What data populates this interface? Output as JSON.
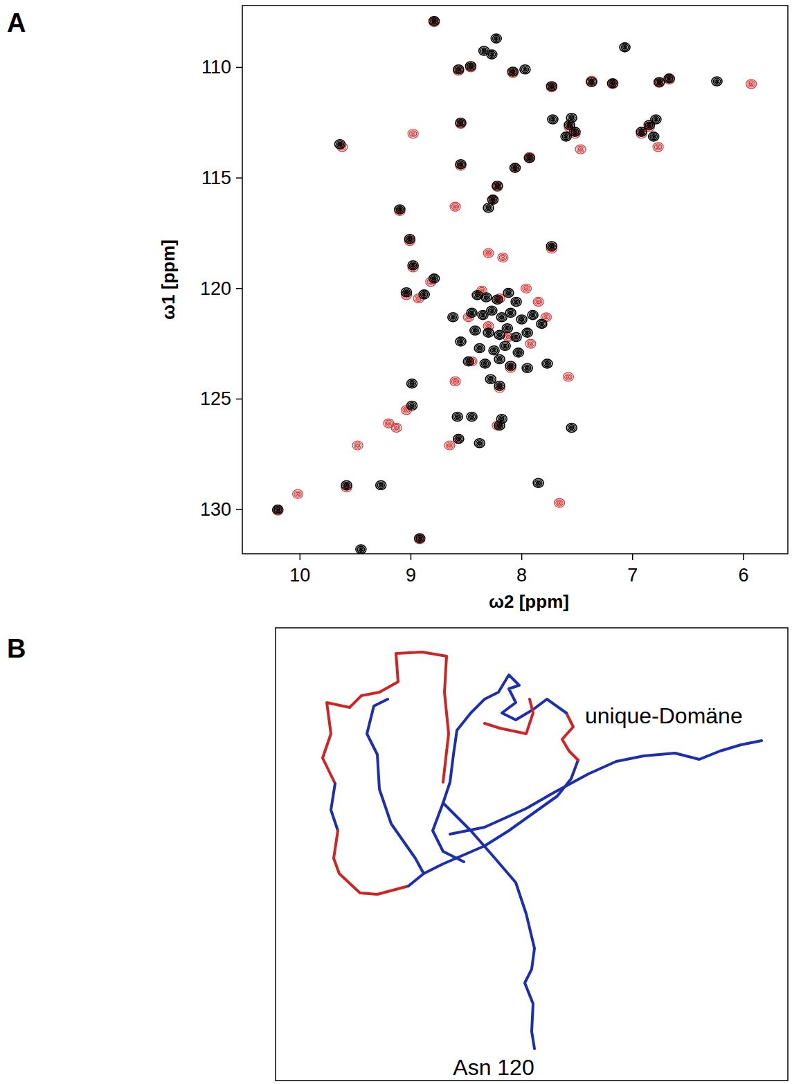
{
  "chart_data": {
    "type": "scatter",
    "panel_label": "A",
    "x_label": "ω2 [ppm]",
    "y_label": "ω1 [ppm]",
    "xlim": [
      10.52,
      5.6
    ],
    "ylim": [
      107.2,
      132
    ],
    "xticks": [
      10,
      9,
      8,
      7,
      6
    ],
    "yticks": [
      110,
      115,
      120,
      125,
      130
    ],
    "marker": "contour",
    "series": [
      {
        "color": "#e03030",
        "x": [
          8.79,
          8.57,
          8.46,
          8.08,
          7.73,
          7.37,
          7.18,
          6.76,
          6.67,
          5.93,
          7.57,
          7.52,
          6.85,
          6.92,
          7.47,
          6.77,
          8.55,
          9.62,
          8.98,
          7.93,
          8.06,
          8.55,
          8.22,
          8.26,
          9.1,
          8.6,
          9.01,
          7.73,
          8.3,
          8.17,
          8.98,
          8.82,
          9.04,
          8.93,
          8.36,
          8.2,
          7.96,
          7.85,
          7.78,
          8.48,
          8.3,
          8.12,
          7.92,
          8.45,
          8.1,
          8.6,
          8.2,
          7.58,
          9.2,
          9.13,
          9.48,
          9.04,
          8.65,
          8.57,
          8.22,
          9.58,
          10.02,
          10.2,
          7.66,
          8.92
        ],
        "values": [
          107.95,
          110.15,
          110.0,
          110.25,
          110.9,
          110.6,
          110.75,
          110.7,
          110.55,
          110.75,
          112.7,
          113.0,
          112.7,
          113.0,
          113.7,
          113.6,
          112.55,
          113.6,
          113.0,
          114.05,
          114.55,
          114.45,
          115.4,
          116.0,
          116.5,
          116.3,
          117.85,
          118.2,
          118.4,
          118.6,
          119.05,
          119.7,
          120.3,
          120.45,
          120.1,
          120.45,
          120.0,
          120.6,
          121.3,
          121.3,
          121.7,
          122.2,
          122.5,
          123.3,
          123.6,
          124.2,
          124.5,
          124.0,
          126.1,
          126.3,
          127.1,
          125.5,
          127.1,
          126.8,
          126.2,
          129.0,
          129.3,
          130.05,
          129.7,
          131.35
        ]
      },
      {
        "color": "#000000",
        "x": [
          8.79,
          8.23,
          8.57,
          8.46,
          8.34,
          8.27,
          8.08,
          7.73,
          7.37,
          7.18,
          6.76,
          6.67,
          6.24,
          7.07,
          7.97,
          7.57,
          7.52,
          7.55,
          7.6,
          6.85,
          6.79,
          6.92,
          6.81,
          8.55,
          7.72,
          9.64,
          8.55,
          8.06,
          7.93,
          8.22,
          8.26,
          8.3,
          9.1,
          9.01,
          7.73,
          8.98,
          8.79,
          9.04,
          8.88,
          8.4,
          8.32,
          8.22,
          8.12,
          8.05,
          8.45,
          8.35,
          8.27,
          8.18,
          8.1,
          8.0,
          7.9,
          7.82,
          8.42,
          8.3,
          8.2,
          8.13,
          8.05,
          7.95,
          8.55,
          8.38,
          8.25,
          8.15,
          8.03,
          8.48,
          8.33,
          8.2,
          8.1,
          7.95,
          8.62,
          8.28,
          8.2,
          7.77,
          8.99,
          8.99,
          8.58,
          8.45,
          8.57,
          8.38,
          8.2,
          8.18,
          7.55,
          9.27,
          9.58,
          10.2,
          7.85,
          8.92,
          9.45
        ],
        "values": [
          107.9,
          108.69,
          110.09,
          109.94,
          109.25,
          109.41,
          110.19,
          110.85,
          110.66,
          110.72,
          110.66,
          110.5,
          110.63,
          109.09,
          110.09,
          112.6,
          112.91,
          112.28,
          113.13,
          112.6,
          112.35,
          112.91,
          113.13,
          112.5,
          112.35,
          113.47,
          114.38,
          114.54,
          114.1,
          115.35,
          115.98,
          116.35,
          116.42,
          117.76,
          118.08,
          118.95,
          119.55,
          120.17,
          120.27,
          120.3,
          120.4,
          120.5,
          120.2,
          120.6,
          121.1,
          121.2,
          121.0,
          121.3,
          121.1,
          121.4,
          121.2,
          121.6,
          121.9,
          122.0,
          122.1,
          121.8,
          122.2,
          122.0,
          122.4,
          122.7,
          122.8,
          122.6,
          122.9,
          123.3,
          123.4,
          123.2,
          123.5,
          123.6,
          121.3,
          124.1,
          124.4,
          123.4,
          124.3,
          125.3,
          125.8,
          125.8,
          126.8,
          127.0,
          126.2,
          125.9,
          126.3,
          128.9,
          128.9,
          130.0,
          128.8,
          131.3,
          131.8
        ]
      }
    ]
  },
  "structure": {
    "panel_label": "B",
    "labels": [
      "unique-Domäne",
      "Asn 120"
    ]
  }
}
